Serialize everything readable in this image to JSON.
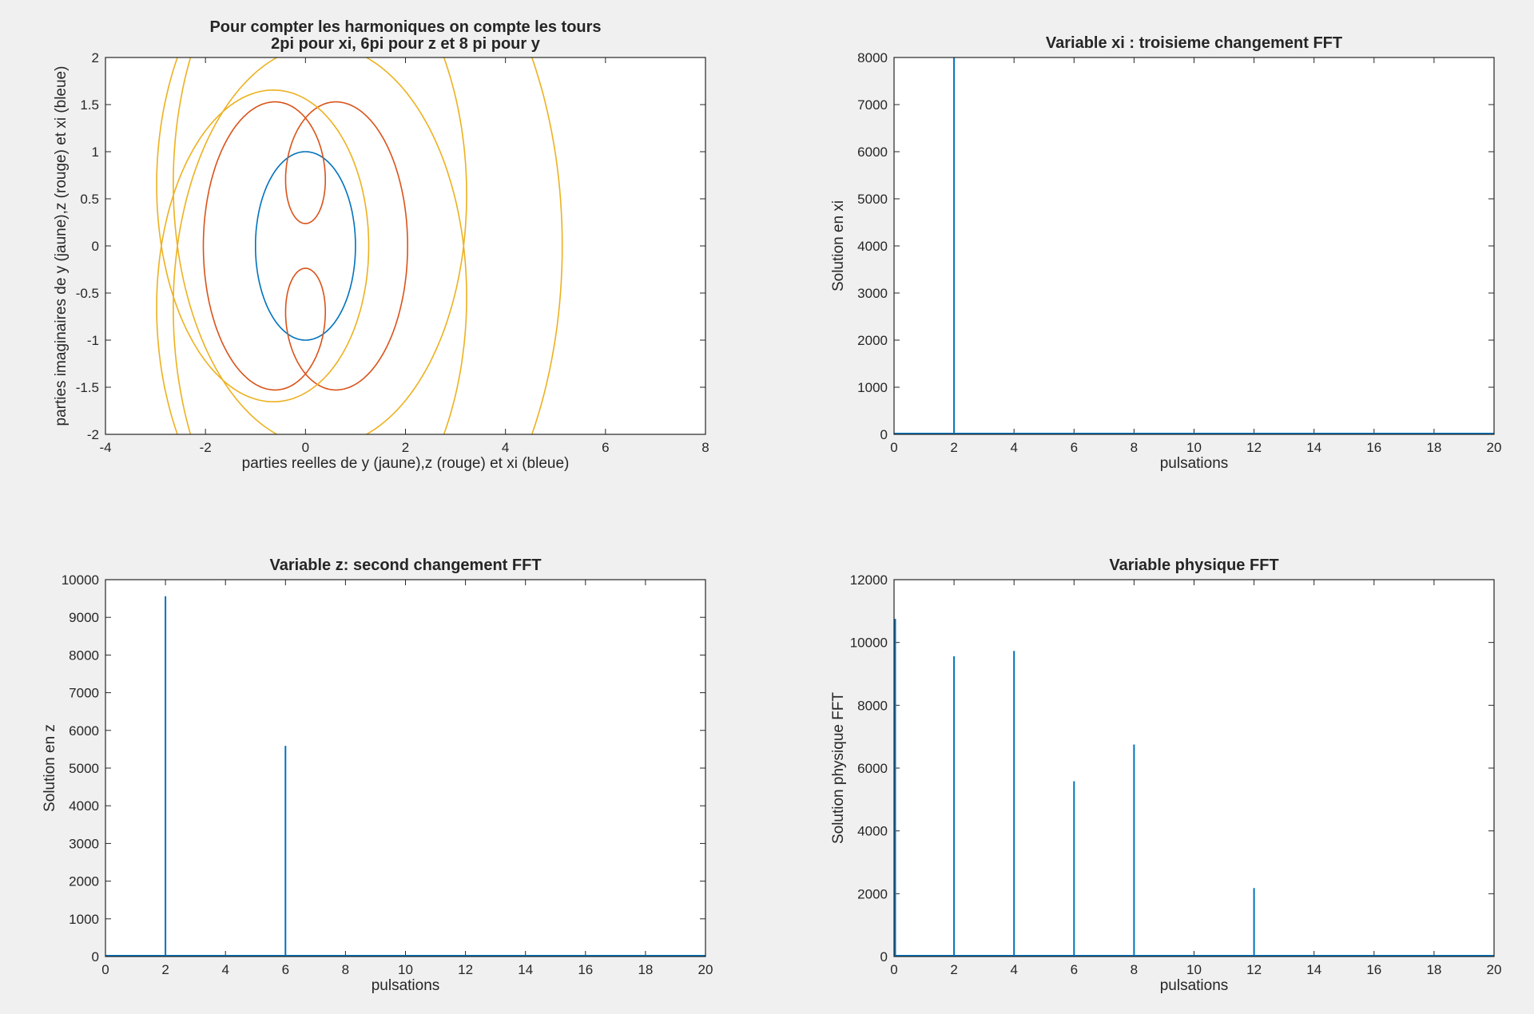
{
  "figure": {
    "background": "#f0f0f0"
  },
  "colors": {
    "blue": "#0072bd",
    "red": "#d95319",
    "yellow": "#edb120",
    "axes": "#262626"
  },
  "chart_data": [
    {
      "type": "line",
      "title": [
        "Pour compter les harmoniques on compte les tours",
        "2pi pour xi, 6pi pour z et 8 pi pour y"
      ],
      "xlabel": "parties reelles de y (jaune),z (rouge) et xi (bleue)",
      "ylabel": "parties imaginaires de y (jaune),z (rouge) et xi (bleue)",
      "xlim": [
        -4,
        8
      ],
      "ylim": [
        -2,
        2
      ],
      "xticks": [
        -4,
        -2,
        0,
        2,
        4,
        6,
        8
      ],
      "xtick_labels": [
        "-4",
        "-2",
        "0",
        "2",
        "4",
        "6",
        "8"
      ],
      "yticks": [
        -2,
        -1.5,
        -1,
        -0.5,
        0,
        0.5,
        1,
        1.5,
        2
      ],
      "ytick_labels": [
        "-2",
        "-1.5",
        "-1",
        "-0.5",
        "0",
        "0.5",
        "1",
        "1.5",
        "2"
      ],
      "grid": false,
      "series": [
        {
          "color": "blue",
          "curve": "xi",
          "description": "unit circle, 1 turn",
          "a": 1,
          "b": 0,
          "c": 0
        },
        {
          "color": "red",
          "curve": "z",
          "description": "3 turns",
          "a": 1.2,
          "b": 0.95,
          "c": 0
        },
        {
          "color": "yellow",
          "curve": "y",
          "description": "4 turns",
          "a": 1.2,
          "b": 0.95,
          "c": 3.3
        }
      ]
    },
    {
      "type": "bar",
      "title": "Variable xi : troisieme changement FFT",
      "xlabel": "pulsations",
      "ylabel": "Solution en xi",
      "xlim": [
        0,
        20
      ],
      "ylim": [
        0,
        8000
      ],
      "xticks": [
        0,
        2,
        4,
        6,
        8,
        10,
        12,
        14,
        16,
        18,
        20
      ],
      "xtick_labels": [
        "0",
        "2",
        "4",
        "6",
        "8",
        "10",
        "12",
        "14",
        "16",
        "18",
        "20"
      ],
      "yticks": [
        0,
        1000,
        2000,
        3000,
        4000,
        5000,
        6000,
        7000,
        8000
      ],
      "ytick_labels": [
        "0",
        "1000",
        "2000",
        "3000",
        "4000",
        "5000",
        "6000",
        "7000",
        "8000"
      ],
      "grid": false,
      "x": [
        2
      ],
      "values": [
        8000
      ]
    },
    {
      "type": "bar",
      "title": "Variable z: second changement FFT",
      "xlabel": "pulsations",
      "ylabel": "Solution en z",
      "xlim": [
        0,
        20
      ],
      "ylim": [
        0,
        10000
      ],
      "xticks": [
        0,
        2,
        4,
        6,
        8,
        10,
        12,
        14,
        16,
        18,
        20
      ],
      "xtick_labels": [
        "0",
        "2",
        "4",
        "6",
        "8",
        "10",
        "12",
        "14",
        "16",
        "18",
        "20"
      ],
      "yticks": [
        0,
        1000,
        2000,
        3000,
        4000,
        5000,
        6000,
        7000,
        8000,
        9000,
        10000
      ],
      "ytick_labels": [
        "0",
        "1000",
        "2000",
        "3000",
        "4000",
        "5000",
        "6000",
        "7000",
        "8000",
        "9000",
        "10000"
      ],
      "grid": false,
      "x": [
        2,
        6
      ],
      "values": [
        9560,
        5590
      ]
    },
    {
      "type": "bar",
      "title": "Variable physique FFT",
      "xlabel": "pulsations",
      "ylabel": "Solution physique FFT",
      "xlim": [
        0,
        20
      ],
      "ylim": [
        0,
        12000
      ],
      "xticks": [
        0,
        2,
        4,
        6,
        8,
        10,
        12,
        14,
        16,
        18,
        20
      ],
      "xtick_labels": [
        "0",
        "2",
        "4",
        "6",
        "8",
        "10",
        "12",
        "14",
        "16",
        "18",
        "20"
      ],
      "yticks": [
        0,
        2000,
        4000,
        6000,
        8000,
        10000,
        12000
      ],
      "ytick_labels": [
        "0",
        "2000",
        "4000",
        "6000",
        "8000",
        "10000",
        "12000"
      ],
      "grid": false,
      "x": [
        0,
        2,
        4,
        6,
        8,
        12
      ],
      "values": [
        10750,
        9560,
        9730,
        5580,
        6750,
        2180
      ]
    }
  ]
}
